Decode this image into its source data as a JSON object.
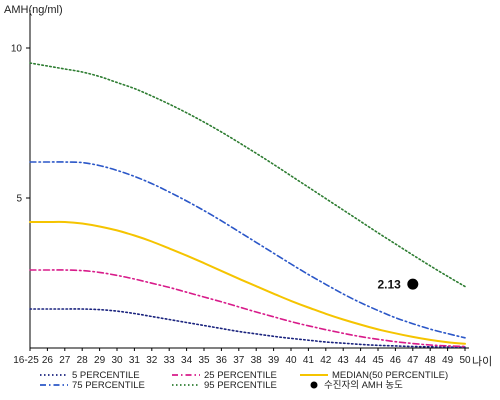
{
  "chart_data": {
    "type": "line",
    "ylabel": "AMH(ng/ml)",
    "xlabel": "나이",
    "ylim": [
      0,
      11
    ],
    "yticks": [
      5,
      10
    ],
    "categories": [
      "16-25",
      "26",
      "27",
      "28",
      "29",
      "30",
      "31",
      "32",
      "33",
      "34",
      "35",
      "36",
      "37",
      "38",
      "39",
      "40",
      "41",
      "42",
      "43",
      "44",
      "45",
      "46",
      "47",
      "48",
      "49",
      "50"
    ],
    "series": [
      {
        "name": "5 PERCENTILE",
        "color": "#1a237e",
        "dash": "dot",
        "values": [
          1.3,
          1.3,
          1.3,
          1.3,
          1.28,
          1.23,
          1.15,
          1.05,
          0.95,
          0.85,
          0.75,
          0.65,
          0.55,
          0.47,
          0.39,
          0.32,
          0.26,
          0.2,
          0.16,
          0.12,
          0.09,
          0.07,
          0.05,
          0.04,
          0.03,
          0.03
        ]
      },
      {
        "name": "25 PERCENTILE",
        "color": "#d81b8a",
        "dash": "dashdot",
        "values": [
          2.6,
          2.6,
          2.6,
          2.58,
          2.52,
          2.42,
          2.3,
          2.16,
          2.02,
          1.86,
          1.7,
          1.54,
          1.37,
          1.2,
          1.04,
          0.88,
          0.74,
          0.61,
          0.49,
          0.38,
          0.29,
          0.21,
          0.15,
          0.1,
          0.07,
          0.05
        ]
      },
      {
        "name": "MEDIAN(50 PERCENTILE)",
        "color": "#f5c400",
        "dash": "solid",
        "values": [
          4.2,
          4.2,
          4.2,
          4.15,
          4.05,
          3.92,
          3.75,
          3.55,
          3.32,
          3.08,
          2.83,
          2.57,
          2.31,
          2.06,
          1.81,
          1.57,
          1.35,
          1.14,
          0.95,
          0.78,
          0.62,
          0.49,
          0.37,
          0.27,
          0.19,
          0.14
        ]
      },
      {
        "name": "75 PERCENTILE",
        "color": "#2b57c8",
        "dash": "dashdot",
        "values": [
          6.2,
          6.2,
          6.2,
          6.18,
          6.08,
          5.92,
          5.72,
          5.48,
          5.2,
          4.9,
          4.58,
          4.24,
          3.88,
          3.52,
          3.16,
          2.8,
          2.45,
          2.12,
          1.8,
          1.51,
          1.25,
          1.01,
          0.81,
          0.63,
          0.48,
          0.34
        ]
      },
      {
        "name": "95 PERCENTILE",
        "color": "#2e7d32",
        "dash": "dot",
        "values": [
          9.5,
          9.4,
          9.3,
          9.2,
          9.05,
          8.85,
          8.65,
          8.4,
          8.13,
          7.84,
          7.53,
          7.2,
          6.85,
          6.49,
          6.12,
          5.74,
          5.36,
          4.98,
          4.6,
          4.22,
          3.84,
          3.47,
          3.1,
          2.74,
          2.39,
          2.05
        ]
      }
    ],
    "points": [
      {
        "name": "수진자의 AMH 농도",
        "x": "47",
        "y": 2.13,
        "label": "2.13",
        "color": "#000000"
      }
    ],
    "legend": "bottom"
  }
}
